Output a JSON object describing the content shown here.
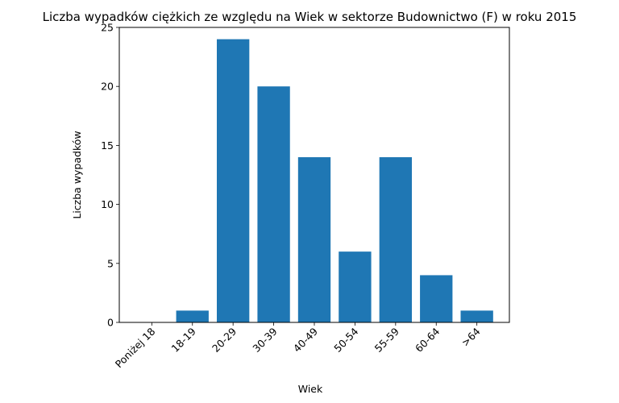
{
  "chart_data": {
    "type": "bar",
    "title": "Liczba wypadków ciężkich ze względu na Wiek w sektorze Budownictwo (F)   w roku 2015",
    "xlabel": "Wiek",
    "ylabel": "Liczba wypadków",
    "categories": [
      "Poniżej 18",
      "18-19",
      "20-29",
      "30-39",
      "40-49",
      "50-54",
      "55-59",
      "60-64",
      ">64"
    ],
    "values": [
      0,
      1,
      24,
      20,
      14,
      6,
      14,
      4,
      1
    ],
    "ylim": [
      0,
      25
    ],
    "yticks": [
      0,
      5,
      10,
      15,
      20,
      25
    ],
    "grid": false,
    "bar_color": "#1f77b4"
  }
}
